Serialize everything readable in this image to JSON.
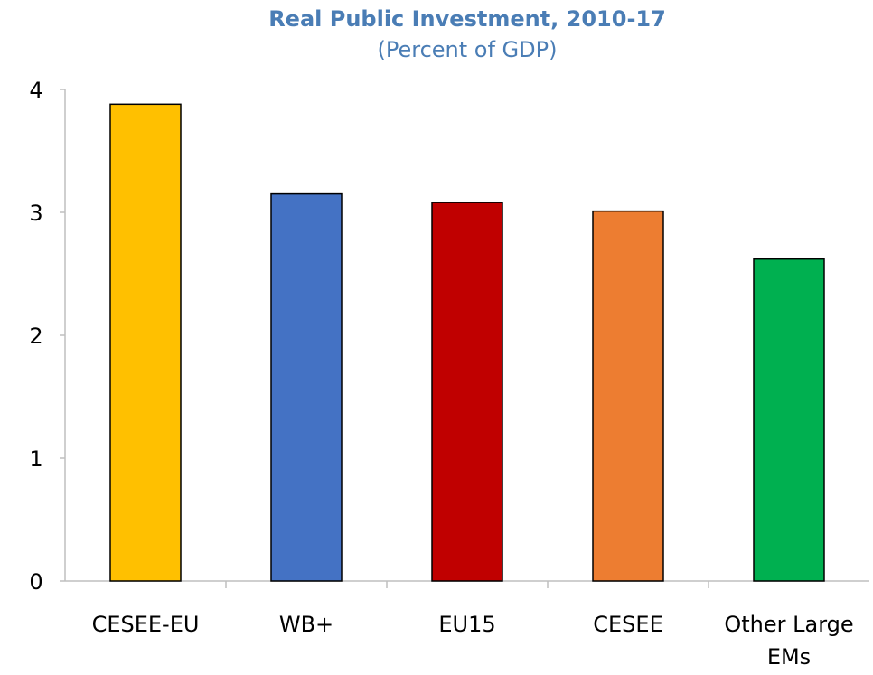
{
  "chart_data": {
    "type": "bar",
    "title": "Real Public Investment, 2010-17",
    "subtitle": "(Percent of GDP)",
    "categories": [
      "CESEE-EU",
      "WB+",
      "EU15",
      "CESEE",
      "Other Large EMs"
    ],
    "values": [
      3.88,
      3.15,
      3.08,
      3.01,
      2.62
    ],
    "colors": [
      "#ffc000",
      "#4472c4",
      "#c00000",
      "#ed7d31",
      "#00b050"
    ],
    "ylim": [
      0,
      4
    ],
    "yticks": [
      0,
      1,
      2,
      3,
      4
    ],
    "grid": false
  }
}
